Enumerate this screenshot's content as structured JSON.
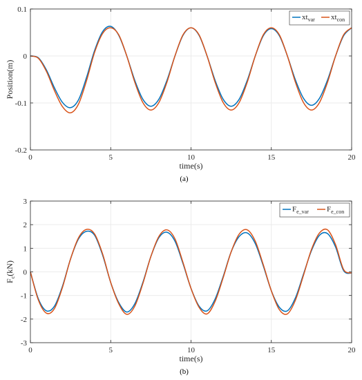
{
  "chart_data": [
    {
      "type": "line",
      "caption": "(a)",
      "xlabel": "time(s)",
      "ylabel": "Position(m)",
      "xlim": [
        0,
        20
      ],
      "ylim": [
        -0.2,
        0.1
      ],
      "xticks": [
        "0",
        "5",
        "10",
        "15",
        "20"
      ],
      "yticks": [
        "0.1",
        "0",
        "-0.1",
        "-0.2"
      ],
      "grid": true,
      "legend_position": "top-right",
      "x": [
        0,
        0.5,
        1,
        1.5,
        2,
        2.5,
        3,
        3.5,
        4,
        4.5,
        5,
        5.5,
        6,
        6.5,
        7,
        7.5,
        8,
        8.5,
        9,
        9.5,
        10,
        10.5,
        11,
        11.5,
        12,
        12.5,
        13,
        13.5,
        14,
        14.5,
        15,
        15.5,
        16,
        16.5,
        17,
        17.5,
        18,
        18.5,
        19,
        19.5,
        20
      ],
      "series": [
        {
          "name": "xt_var",
          "label_base": "xt",
          "label_sub": "var",
          "color": "#0072BD",
          "values": [
            0,
            -0.004,
            -0.03,
            -0.068,
            -0.099,
            -0.11,
            -0.093,
            -0.045,
            0.012,
            0.052,
            0.063,
            0.044,
            0.0,
            -0.052,
            -0.092,
            -0.107,
            -0.092,
            -0.052,
            0.0,
            0.044,
            0.06,
            0.044,
            0.0,
            -0.052,
            -0.092,
            -0.107,
            -0.092,
            -0.052,
            0.0,
            0.043,
            0.058,
            0.043,
            0.0,
            -0.051,
            -0.09,
            -0.105,
            -0.09,
            -0.051,
            0.0,
            0.043,
            0.06
          ]
        },
        {
          "name": "xt_con",
          "label_base": "xt",
          "label_sub": "con",
          "color": "#D95319",
          "values": [
            0,
            -0.005,
            -0.033,
            -0.074,
            -0.108,
            -0.121,
            -0.102,
            -0.052,
            0.008,
            0.048,
            0.06,
            0.045,
            0.0,
            -0.056,
            -0.099,
            -0.115,
            -0.099,
            -0.056,
            0.0,
            0.045,
            0.06,
            0.045,
            0.0,
            -0.056,
            -0.099,
            -0.115,
            -0.099,
            -0.056,
            0.0,
            0.045,
            0.06,
            0.045,
            0.0,
            -0.056,
            -0.099,
            -0.115,
            -0.099,
            -0.056,
            0.0,
            0.045,
            0.06
          ]
        }
      ]
    },
    {
      "type": "line",
      "caption": "(b)",
      "xlabel": "time(s)",
      "ylabel_base": "F",
      "ylabel_sub": "c",
      "ylabel_unit": "(kN)",
      "xlim": [
        0,
        20
      ],
      "ylim": [
        -3,
        3
      ],
      "xticks": [
        "0",
        "5",
        "10",
        "15",
        "20"
      ],
      "yticks": [
        "3",
        "2",
        "1",
        "0",
        "-1",
        "-2",
        "-3"
      ],
      "grid": true,
      "legend_position": "top-right",
      "x": [
        0,
        0.5,
        1,
        1.5,
        2,
        2.5,
        3,
        3.5,
        4,
        4.5,
        5,
        5.5,
        6,
        6.5,
        7,
        7.5,
        8,
        8.5,
        9,
        9.5,
        10,
        10.5,
        11,
        11.5,
        12,
        12.5,
        13,
        13.5,
        14,
        14.5,
        15,
        15.5,
        16,
        16.5,
        17,
        17.5,
        18,
        18.5,
        19,
        19.5,
        20
      ],
      "series": [
        {
          "name": "F_e_var",
          "label_base": "F",
          "label_sub": "e_var",
          "color": "#0072BD",
          "values": [
            0,
            -1.15,
            -1.65,
            -1.45,
            -0.6,
            0.55,
            1.4,
            1.72,
            1.55,
            0.7,
            -0.45,
            -1.3,
            -1.7,
            -1.35,
            -0.45,
            0.65,
            1.45,
            1.68,
            1.3,
            0.35,
            -0.7,
            -1.45,
            -1.65,
            -1.15,
            -0.2,
            0.85,
            1.5,
            1.65,
            1.2,
            0.25,
            -0.8,
            -1.5,
            -1.65,
            -1.1,
            -0.1,
            0.9,
            1.55,
            1.62,
            1.05,
            0.05,
            -0.05
          ]
        },
        {
          "name": "F_e_con",
          "label_base": "F",
          "label_sub": "e_con",
          "color": "#D95319",
          "values": [
            0,
            -1.2,
            -1.75,
            -1.55,
            -0.65,
            0.55,
            1.45,
            1.8,
            1.6,
            0.75,
            -0.45,
            -1.35,
            -1.8,
            -1.45,
            -0.5,
            0.65,
            1.5,
            1.78,
            1.4,
            0.4,
            -0.7,
            -1.5,
            -1.78,
            -1.25,
            -0.25,
            0.85,
            1.6,
            1.78,
            1.3,
            0.3,
            -0.8,
            -1.6,
            -1.78,
            -1.2,
            -0.15,
            0.95,
            1.65,
            1.78,
            1.15,
            0.1,
            -0.05
          ]
        }
      ]
    }
  ]
}
